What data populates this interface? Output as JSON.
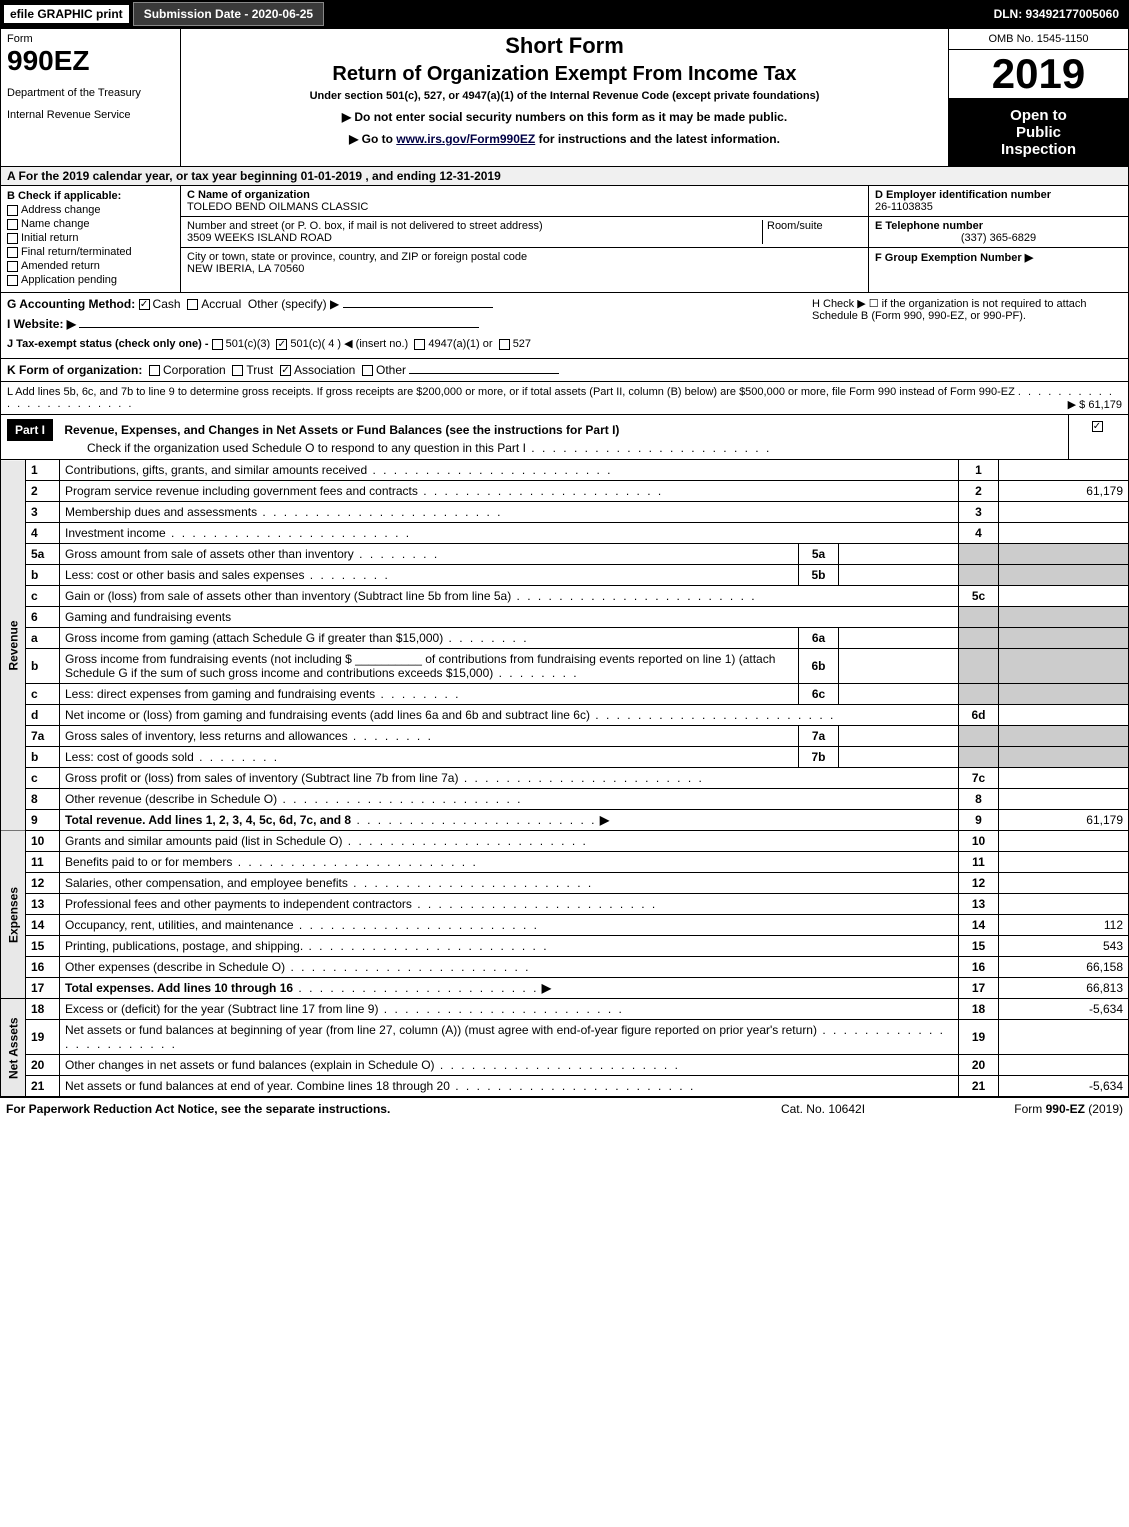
{
  "top_bar": {
    "efile": "efile GRAPHIC print",
    "submission": "Submission Date - 2020-06-25",
    "dln": "DLN: 93492177005060"
  },
  "header": {
    "form_label": "Form",
    "form_number": "990EZ",
    "dept_line1": "Department of the Treasury",
    "dept_line2": "Internal Revenue Service",
    "short_form": "Short Form",
    "return_title": "Return of Organization Exempt From Income Tax",
    "under_section": "Under section 501(c), 527, or 4947(a)(1) of the Internal Revenue Code (except private foundations)",
    "note1": "▶ Do not enter social security numbers on this form as it may be made public.",
    "note2": "▶ Go to www.irs.gov/Form990EZ for instructions and the latest information.",
    "omb": "OMB No. 1545-1150",
    "year": "2019",
    "open1": "Open to",
    "open2": "Public",
    "open3": "Inspection"
  },
  "section_a": "A  For the 2019 calendar year, or tax year beginning 01-01-2019 , and ending 12-31-2019",
  "col_b": {
    "title": "B  Check if applicable:",
    "items": [
      "Address change",
      "Name change",
      "Initial return",
      "Final return/terminated",
      "Amended return",
      "Application pending"
    ]
  },
  "col_c": {
    "name_label": "C Name of organization",
    "name": "TOLEDO BEND OILMANS CLASSIC",
    "street_label": "Number and street (or P. O. box, if mail is not delivered to street address)",
    "room_label": "Room/suite",
    "street": "3509 WEEKS ISLAND ROAD",
    "city_label": "City or town, state or province, country, and ZIP or foreign postal code",
    "city": "NEW IBERIA, LA  70560"
  },
  "col_d": {
    "ein_label": "D Employer identification number",
    "ein": "26-1103835",
    "phone_label": "E Telephone number",
    "phone": "(337) 365-6829",
    "group_label": "F Group Exemption Number  ▶"
  },
  "line_g": {
    "label": "G Accounting Method:",
    "opts": [
      "Cash",
      "Accrual",
      "Other (specify) ▶"
    ]
  },
  "line_h": "H  Check ▶  ☐  if the organization is not required to attach Schedule B (Form 990, 990-EZ, or 990-PF).",
  "line_i": {
    "label": "I Website: ▶"
  },
  "line_j": {
    "label": "J Tax-exempt status (check only one) -",
    "opts": [
      "501(c)(3)",
      "501(c)( 4 ) ◀ (insert no.)",
      "4947(a)(1) or",
      "527"
    ]
  },
  "line_k": {
    "label": "K Form of organization:",
    "opts": [
      "Corporation",
      "Trust",
      "Association",
      "Other"
    ]
  },
  "line_l": {
    "text": "L Add lines 5b, 6c, and 7b to line 9 to determine gross receipts. If gross receipts are $200,000 or more, or if total assets (Part II, column (B) below) are $500,000 or more, file Form 990 instead of Form 990-EZ",
    "amount": "▶ $ 61,179"
  },
  "part1": {
    "header": "Part I",
    "title": "Revenue, Expenses, and Changes in Net Assets or Fund Balances (see the instructions for Part I)",
    "subtitle": "Check if the organization used Schedule O to respond to any question in this Part I",
    "side_labels": {
      "rev": "Revenue",
      "exp": "Expenses",
      "net": "Net Assets"
    }
  },
  "lines": [
    {
      "n": "1",
      "desc": "Contributions, gifts, grants, and similar amounts received",
      "ln": "1",
      "amt": ""
    },
    {
      "n": "2",
      "desc": "Program service revenue including government fees and contracts",
      "ln": "2",
      "amt": "61,179"
    },
    {
      "n": "3",
      "desc": "Membership dues and assessments",
      "ln": "3",
      "amt": ""
    },
    {
      "n": "4",
      "desc": "Investment income",
      "ln": "4",
      "amt": ""
    },
    {
      "n": "5a",
      "sub": true,
      "desc": "Gross amount from sale of assets other than inventory",
      "inner_ln": "5a",
      "inner_val": ""
    },
    {
      "n": "b",
      "sub": true,
      "desc": "Less: cost or other basis and sales expenses",
      "inner_ln": "5b",
      "inner_val": ""
    },
    {
      "n": "c",
      "sub": true,
      "desc": "Gain or (loss) from sale of assets other than inventory (Subtract line 5b from line 5a)",
      "ln": "5c",
      "amt": ""
    },
    {
      "n": "6",
      "desc": "Gaming and fundraising events",
      "noval": true
    },
    {
      "n": "a",
      "sub": true,
      "desc": "Gross income from gaming (attach Schedule G if greater than $15,000)",
      "inner_ln": "6a",
      "inner_val": ""
    },
    {
      "n": "b",
      "sub": true,
      "desc": "Gross income from fundraising events (not including $ __________ of contributions from fundraising events reported on line 1) (attach Schedule G if the sum of such gross income and contributions exceeds $15,000)",
      "inner_ln": "6b",
      "inner_val": ""
    },
    {
      "n": "c",
      "sub": true,
      "desc": "Less: direct expenses from gaming and fundraising events",
      "inner_ln": "6c",
      "inner_val": ""
    },
    {
      "n": "d",
      "sub": true,
      "desc": "Net income or (loss) from gaming and fundraising events (add lines 6a and 6b and subtract line 6c)",
      "ln": "6d",
      "amt": ""
    },
    {
      "n": "7a",
      "sub": true,
      "desc": "Gross sales of inventory, less returns and allowances",
      "inner_ln": "7a",
      "inner_val": ""
    },
    {
      "n": "b",
      "sub": true,
      "desc": "Less: cost of goods sold",
      "inner_ln": "7b",
      "inner_val": ""
    },
    {
      "n": "c",
      "sub": true,
      "desc": "Gross profit or (loss) from sales of inventory (Subtract line 7b from line 7a)",
      "ln": "7c",
      "amt": ""
    },
    {
      "n": "8",
      "desc": "Other revenue (describe in Schedule O)",
      "ln": "8",
      "amt": ""
    },
    {
      "n": "9",
      "desc": "Total revenue. Add lines 1, 2, 3, 4, 5c, 6d, 7c, and 8",
      "ln": "9",
      "amt": "61,179",
      "bold": true,
      "arrow": true
    }
  ],
  "expenses": [
    {
      "n": "10",
      "desc": "Grants and similar amounts paid (list in Schedule O)",
      "ln": "10",
      "amt": ""
    },
    {
      "n": "11",
      "desc": "Benefits paid to or for members",
      "ln": "11",
      "amt": ""
    },
    {
      "n": "12",
      "desc": "Salaries, other compensation, and employee benefits",
      "ln": "12",
      "amt": ""
    },
    {
      "n": "13",
      "desc": "Professional fees and other payments to independent contractors",
      "ln": "13",
      "amt": ""
    },
    {
      "n": "14",
      "desc": "Occupancy, rent, utilities, and maintenance",
      "ln": "14",
      "amt": "112"
    },
    {
      "n": "15",
      "desc": "Printing, publications, postage, and shipping.",
      "ln": "15",
      "amt": "543"
    },
    {
      "n": "16",
      "desc": "Other expenses (describe in Schedule O)",
      "ln": "16",
      "amt": "66,158"
    },
    {
      "n": "17",
      "desc": "Total expenses. Add lines 10 through 16",
      "ln": "17",
      "amt": "66,813",
      "bold": true,
      "arrow": true
    }
  ],
  "netassets": [
    {
      "n": "18",
      "desc": "Excess or (deficit) for the year (Subtract line 17 from line 9)",
      "ln": "18",
      "amt": "-5,634"
    },
    {
      "n": "19",
      "desc": "Net assets or fund balances at beginning of year (from line 27, column (A)) (must agree with end-of-year figure reported on prior year's return)",
      "ln": "19",
      "amt": ""
    },
    {
      "n": "20",
      "desc": "Other changes in net assets or fund balances (explain in Schedule O)",
      "ln": "20",
      "amt": ""
    },
    {
      "n": "21",
      "desc": "Net assets or fund balances at end of year. Combine lines 18 through 20",
      "ln": "21",
      "amt": "-5,634"
    }
  ],
  "footer": {
    "left": "For Paperwork Reduction Act Notice, see the separate instructions.",
    "mid": "Cat. No. 10642I",
    "right": "Form 990-EZ (2019)"
  },
  "colors": {
    "black": "#000000",
    "white": "#ffffff",
    "shade": "#cccccc",
    "lightshade": "#e8e8e8"
  }
}
